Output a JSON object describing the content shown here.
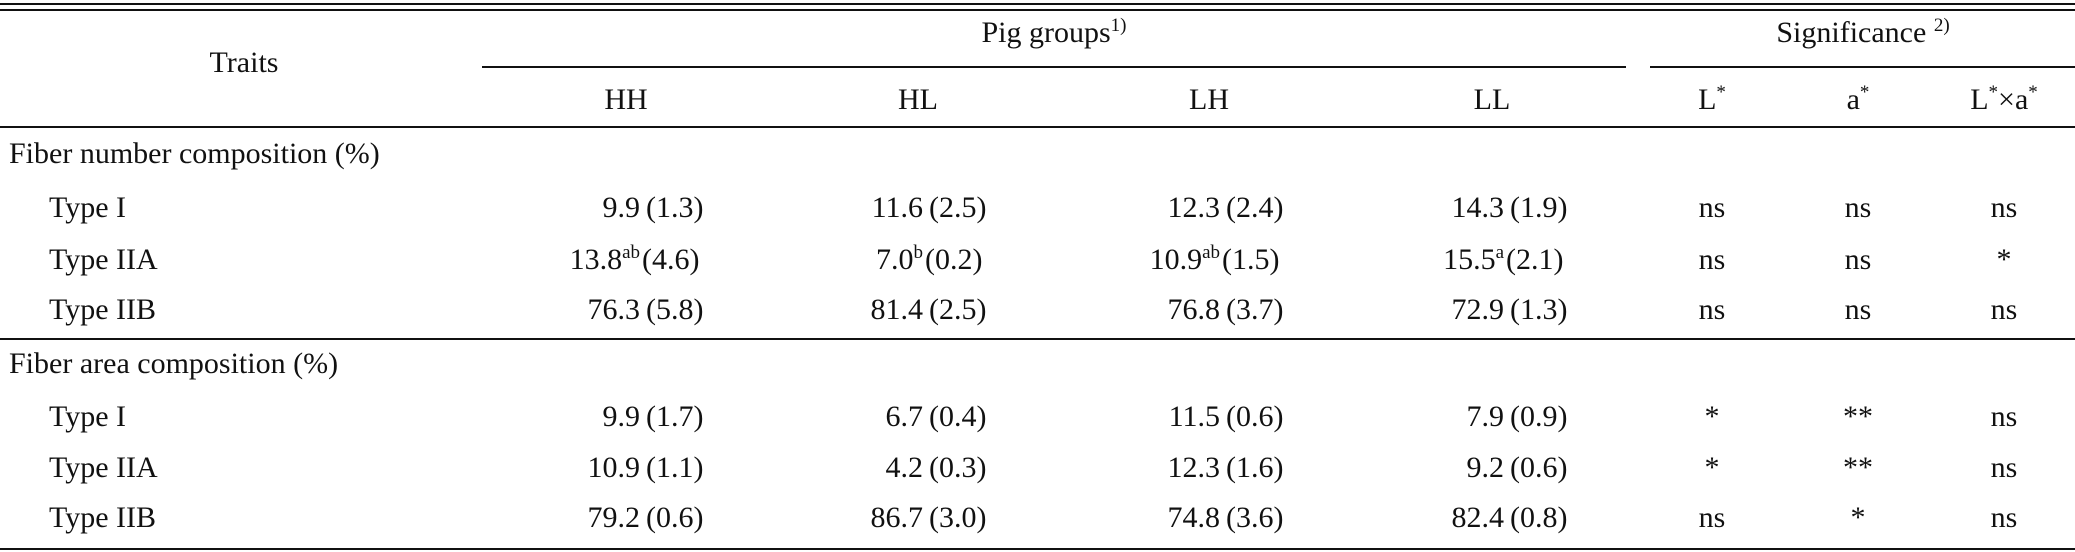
{
  "header": {
    "traits": "Traits",
    "pig_groups": "Pig groups",
    "pig_groups_note": "1)",
    "significance": "Significance",
    "significance_note": "2)",
    "groups": [
      "HH",
      "HL",
      "LH",
      "LL"
    ],
    "sig_cols": [
      {
        "base": "L",
        "sup": "*"
      },
      {
        "base": "a",
        "sup": "*"
      },
      {
        "base": "L",
        "sup": "*",
        "base2": "×a",
        "sup2": "*"
      }
    ]
  },
  "sections": [
    {
      "title": "Fiber number composition (%)",
      "rows": [
        {
          "label": "Type I",
          "cells": [
            {
              "v": "9.9",
              "sup": "",
              "sd": "(1.3)"
            },
            {
              "v": "11.6",
              "sup": "",
              "sd": "(2.5)"
            },
            {
              "v": "12.3",
              "sup": "",
              "sd": "(2.4)"
            },
            {
              "v": "14.3",
              "sup": "",
              "sd": "(1.9)"
            }
          ],
          "sig": [
            "ns",
            "ns",
            "ns"
          ]
        },
        {
          "label": "Type IIA",
          "cells": [
            {
              "v": "13.8",
              "sup": "ab",
              "sd": "(4.6)"
            },
            {
              "v": "7.0",
              "sup": "b",
              "sd": "(0.2)"
            },
            {
              "v": "10.9",
              "sup": "ab",
              "sd": "(1.5)"
            },
            {
              "v": "15.5",
              "sup": "a",
              "sd": "(2.1)"
            }
          ],
          "sig": [
            "ns",
            "ns",
            "*"
          ]
        },
        {
          "label": "Type IIB",
          "cells": [
            {
              "v": "76.3",
              "sup": "",
              "sd": "(5.8)"
            },
            {
              "v": "81.4",
              "sup": "",
              "sd": "(2.5)"
            },
            {
              "v": "76.8",
              "sup": "",
              "sd": "(3.7)"
            },
            {
              "v": "72.9",
              "sup": "",
              "sd": "(1.3)"
            }
          ],
          "sig": [
            "ns",
            "ns",
            "ns"
          ]
        }
      ]
    },
    {
      "title": "Fiber area composition (%)",
      "rows": [
        {
          "label": "Type I",
          "cells": [
            {
              "v": "9.9",
              "sup": "",
              "sd": "(1.7)"
            },
            {
              "v": "6.7",
              "sup": "",
              "sd": "(0.4)"
            },
            {
              "v": "11.5",
              "sup": "",
              "sd": "(0.6)"
            },
            {
              "v": "7.9",
              "sup": "",
              "sd": "(0.9)"
            }
          ],
          "sig": [
            "*",
            "**",
            "ns"
          ]
        },
        {
          "label": "Type IIA",
          "cells": [
            {
              "v": "10.9",
              "sup": "",
              "sd": "(1.1)"
            },
            {
              "v": "4.2",
              "sup": "",
              "sd": "(0.3)"
            },
            {
              "v": "12.3",
              "sup": "",
              "sd": "(1.6)"
            },
            {
              "v": "9.2",
              "sup": "",
              "sd": "(0.6)"
            }
          ],
          "sig": [
            "*",
            "**",
            "ns"
          ]
        },
        {
          "label": "Type IIB",
          "cells": [
            {
              "v": "79.2",
              "sup": "",
              "sd": "(0.6)"
            },
            {
              "v": "86.7",
              "sup": "",
              "sd": "(3.0)"
            },
            {
              "v": "74.8",
              "sup": "",
              "sd": "(3.6)"
            },
            {
              "v": "82.4",
              "sup": "",
              "sd": "(0.8)"
            }
          ],
          "sig": [
            "ns",
            "*",
            "ns"
          ]
        }
      ]
    }
  ]
}
